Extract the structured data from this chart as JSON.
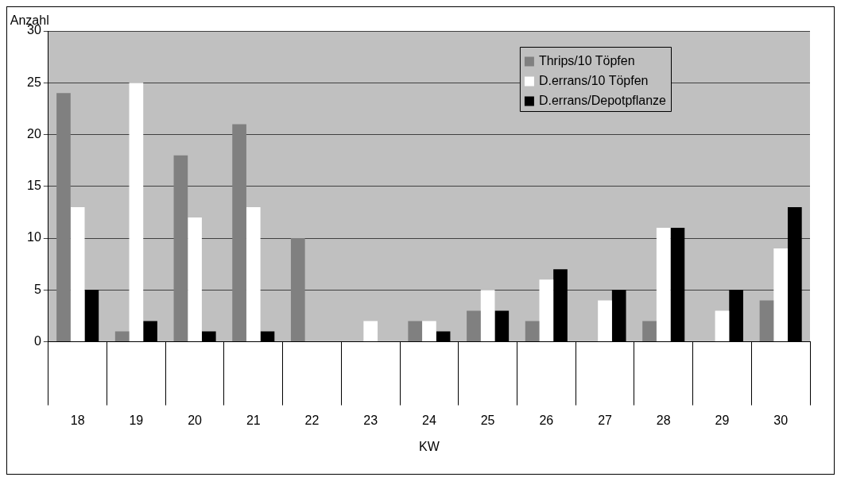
{
  "chart_data": {
    "type": "bar",
    "xlabel": "KW",
    "ylabel": "Anzahl",
    "categories": [
      "18",
      "19",
      "20",
      "21",
      "22",
      "23",
      "24",
      "25",
      "26",
      "27",
      "28",
      "29",
      "30"
    ],
    "series": [
      {
        "name": "Thrips/10 Töpfen",
        "color": "#808080",
        "values": [
          24,
          1,
          18,
          21,
          10,
          0,
          2,
          3,
          2,
          0,
          2,
          0,
          4
        ]
      },
      {
        "name": "D.errans/10 Töpfen",
        "color": "#ffffff",
        "values": [
          13,
          25,
          12,
          13,
          0,
          2,
          2,
          5,
          6,
          4,
          11,
          3,
          9
        ]
      },
      {
        "name": "D.errans/Depotpflanze",
        "color": "#000000",
        "values": [
          5,
          2,
          1,
          1,
          0,
          0,
          1,
          3,
          7,
          5,
          11,
          5,
          13
        ]
      }
    ],
    "ylim": [
      0,
      30
    ],
    "yticks": [
      0,
      5,
      10,
      15,
      20,
      25,
      30
    ],
    "grid": "y",
    "legend": "top right"
  }
}
